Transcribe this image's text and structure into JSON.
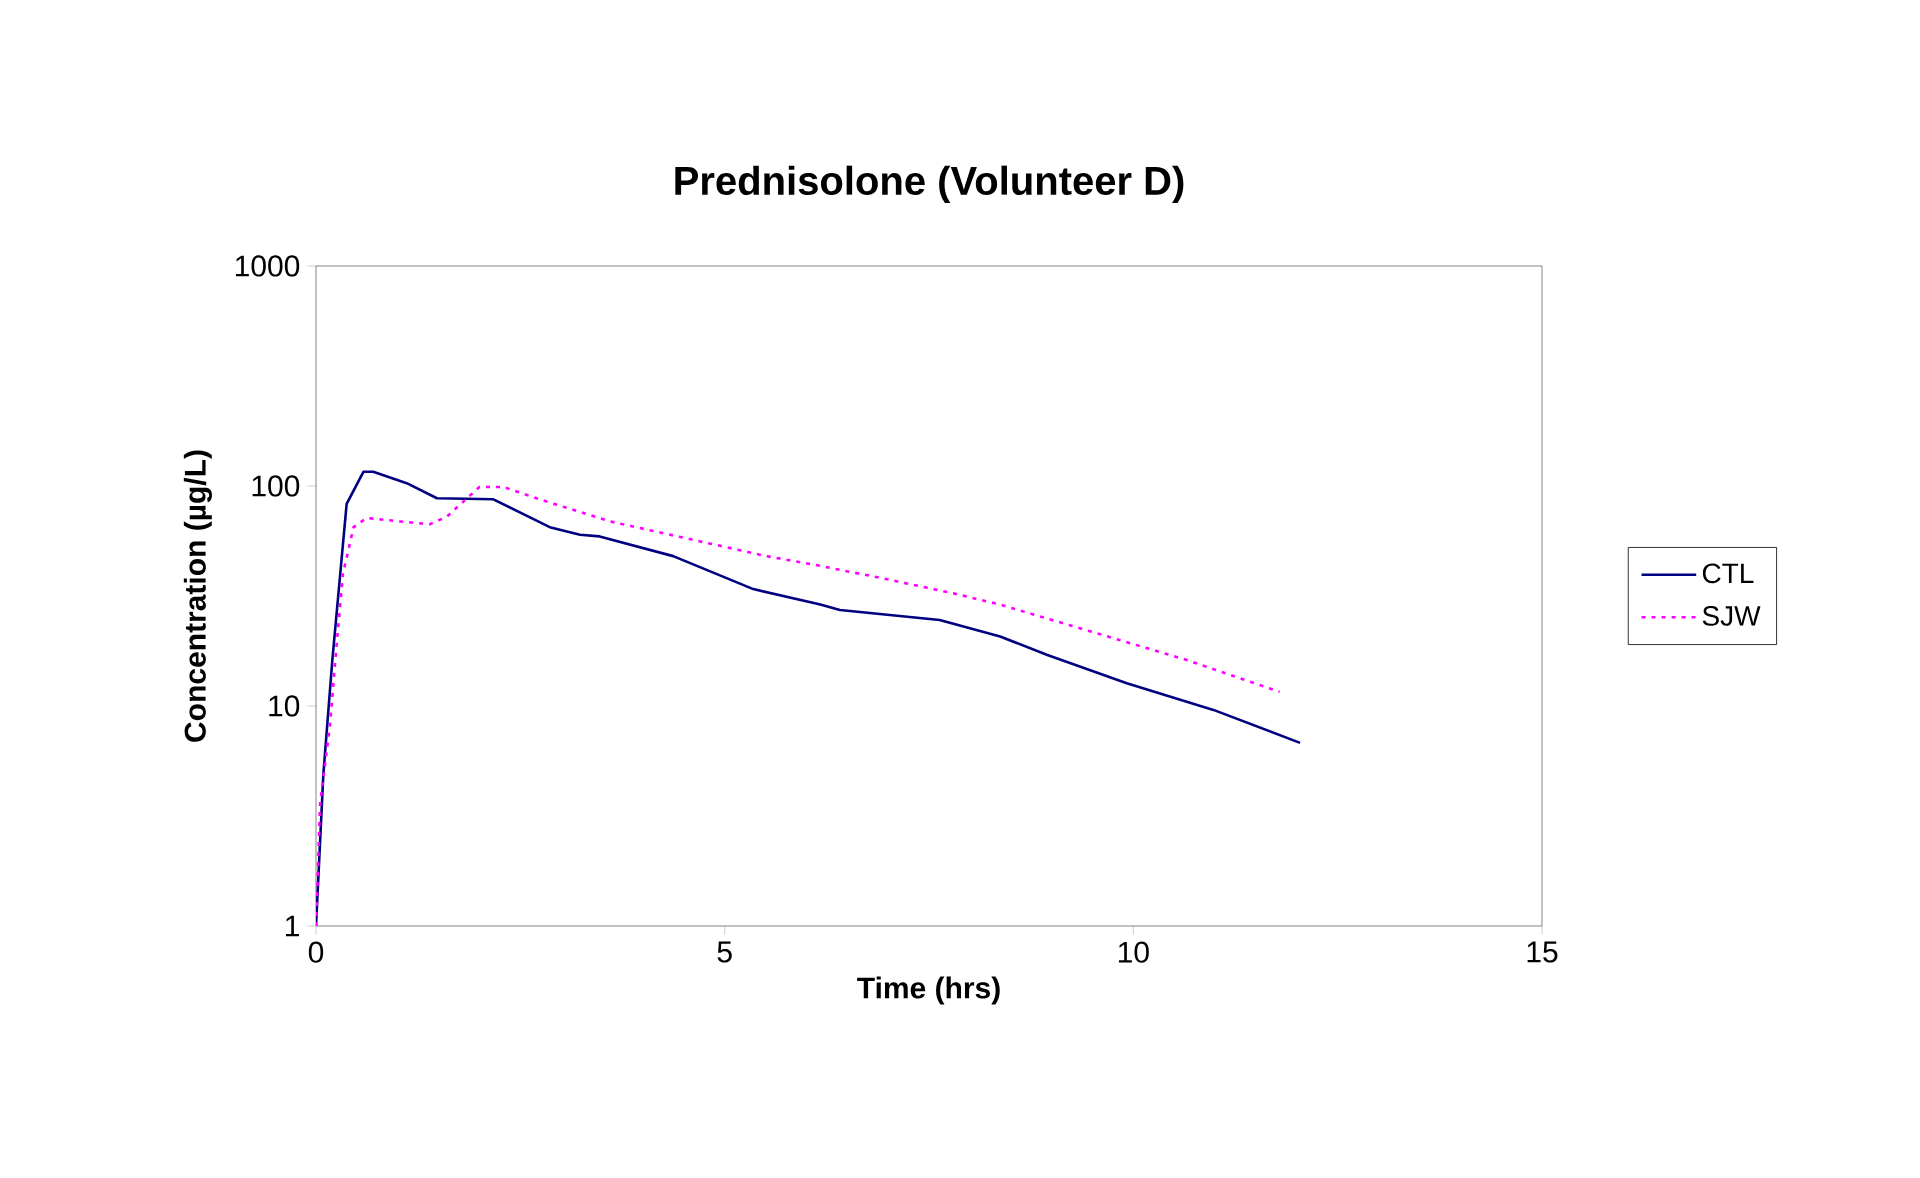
{
  "chart_data": {
    "type": "line",
    "title": "Prednisolone (Volunteer D)",
    "xlabel": "Time (hrs)",
    "ylabel": "Concentration (µg/L)",
    "log": "y",
    "xlim": [
      0,
      15
    ],
    "xticks": [
      0,
      5,
      10,
      15
    ],
    "ylim": [
      1,
      1000
    ],
    "yticks": [
      1,
      10,
      100,
      1000
    ],
    "legend": "right",
    "marker": "none",
    "grid": false,
    "series": [
      {
        "name": "CTL",
        "color": "#000080",
        "line_style": "solid",
        "x": [
          0,
          0.09,
          0.2,
          0.375,
          0.58,
          0.7,
          1.11,
          1.48,
          2.17,
          2.86,
          3.23,
          3.47,
          4.37,
          5.35,
          6.17,
          6.41,
          7.63,
          8.37,
          8.94,
          9.92,
          10.98,
          12.04
        ],
        "values": [
          1,
          4.9,
          16.2,
          83,
          116,
          116,
          103,
          88,
          87,
          65,
          60,
          59,
          48,
          34,
          28.9,
          27.3,
          24.6,
          20.7,
          17.1,
          12.7,
          9.6,
          6.8
        ]
      },
      {
        "name": "SJW",
        "color": "#ff00ff",
        "line_style": "dotted",
        "x": [
          0,
          0.05,
          0.17,
          0.25,
          0.33,
          0.46,
          0.62,
          1.03,
          1.39,
          1.6,
          2.0,
          2.29,
          2.82,
          3.6,
          4.7,
          5.51,
          6.08,
          6.94,
          7.8,
          8.37,
          9.22,
          10.65,
          11.79
        ],
        "values": [
          1,
          3.6,
          8.1,
          18.6,
          40,
          65,
          71.6,
          69,
          67,
          72.5,
          99,
          99,
          85,
          69,
          56,
          48,
          44,
          38,
          32.5,
          28.9,
          23.3,
          16.2,
          11.6
        ]
      }
    ]
  }
}
